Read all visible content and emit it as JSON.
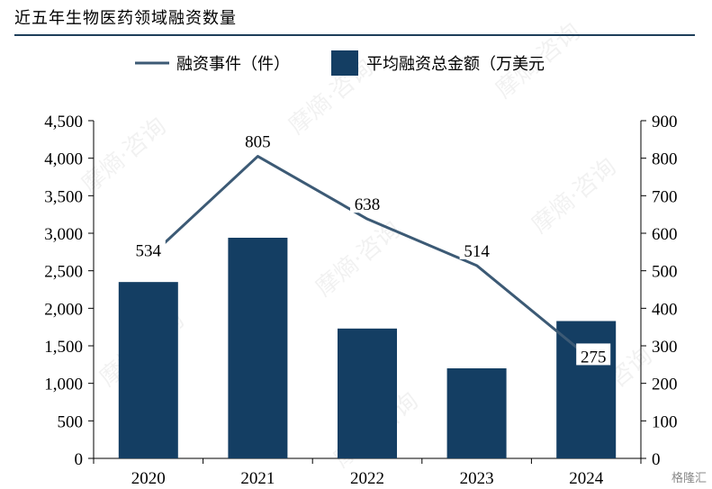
{
  "title": "近五年生物医药领域融资数量",
  "logo_text": "格隆汇",
  "watermark_text": "摩熵·咨询",
  "colors": {
    "bar": "#143e63",
    "line": "#3c5a75",
    "rule": "#1e3f5a"
  },
  "chart_data": {
    "type": "bar",
    "categories": [
      "2020",
      "2021",
      "2022",
      "2023",
      "2024"
    ],
    "series": [
      {
        "name": "平均融资总金额（万美元",
        "kind": "bar",
        "axis": "left",
        "values": [
          2350,
          2940,
          1730,
          1200,
          1830
        ]
      },
      {
        "name": "融资事件（件）",
        "kind": "line",
        "axis": "right",
        "values": [
          534,
          805,
          638,
          514,
          275
        ],
        "labels": [
          "534",
          "805",
          "638",
          "514",
          "275"
        ]
      }
    ],
    "y_left": {
      "min": 0,
      "max": 4500,
      "step": 500,
      "ticks": [
        "0",
        "500",
        "1,000",
        "1,500",
        "2,000",
        "2,500",
        "3,000",
        "3,500",
        "4,000",
        "4,500"
      ]
    },
    "y_right": {
      "min": 0,
      "max": 900,
      "step": 100,
      "ticks": [
        "0",
        "100",
        "200",
        "300",
        "400",
        "500",
        "600",
        "700",
        "800",
        "900"
      ]
    },
    "grid": false,
    "legend_position": "top"
  }
}
